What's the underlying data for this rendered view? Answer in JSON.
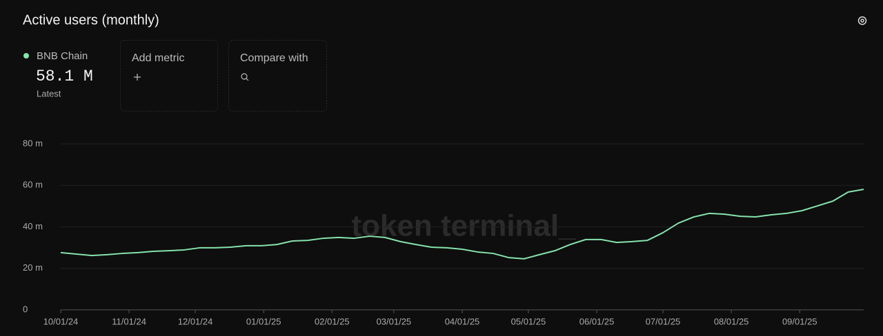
{
  "chart_data": {
    "type": "line",
    "title": "Active users (monthly)",
    "legend": {
      "value": "58.1 M",
      "caption": "Latest"
    },
    "watermark": "token terminal_",
    "x": [
      "2024-10-01",
      "2024-10-08",
      "2024-10-15",
      "2024-10-22",
      "2024-10-29",
      "2024-11-05",
      "2024-11-12",
      "2024-11-19",
      "2024-11-26",
      "2024-12-03",
      "2024-12-10",
      "2024-12-17",
      "2024-12-24",
      "2024-12-31",
      "2025-01-07",
      "2025-01-14",
      "2025-01-21",
      "2025-01-28",
      "2025-02-04",
      "2025-02-11",
      "2025-02-18",
      "2025-02-25",
      "2025-03-04",
      "2025-03-11",
      "2025-03-18",
      "2025-03-25",
      "2025-04-01",
      "2025-04-08",
      "2025-04-15",
      "2025-04-22",
      "2025-04-29",
      "2025-05-06",
      "2025-05-13",
      "2025-05-20",
      "2025-05-27",
      "2025-06-03",
      "2025-06-10",
      "2025-06-17",
      "2025-06-24",
      "2025-07-01",
      "2025-07-08",
      "2025-07-15",
      "2025-07-22",
      "2025-07-29",
      "2025-08-05",
      "2025-08-12",
      "2025-08-19",
      "2025-08-26",
      "2025-09-02",
      "2025-09-09",
      "2025-09-16",
      "2025-09-23",
      "2025-09-30"
    ],
    "series": [
      {
        "name": "BNB Chain",
        "color": "#86e3ad",
        "values": [
          27.6,
          26.9,
          26.2,
          26.6,
          27.2,
          27.6,
          28.2,
          28.5,
          28.9,
          29.9,
          29.9,
          30.2,
          30.9,
          30.9,
          31.5,
          33.2,
          33.5,
          34.5,
          34.9,
          34.5,
          35.5,
          34.9,
          32.9,
          31.5,
          30.2,
          29.9,
          29.2,
          27.9,
          27.2,
          25.2,
          24.6,
          26.6,
          28.5,
          31.5,
          33.9,
          33.9,
          32.5,
          32.9,
          33.5,
          37.2,
          41.8,
          44.8,
          46.5,
          46.1,
          45.1,
          44.8,
          45.8,
          46.5,
          47.8,
          50.1,
          52.4,
          56.8,
          58.1
        ]
      }
    ],
    "xlim": [
      "2024-10-01",
      "2025-09-30"
    ],
    "xticks": [
      {
        "value": "2024-10-01",
        "label": "10/01/24"
      },
      {
        "value": "2024-11-01",
        "label": "11/01/24"
      },
      {
        "value": "2024-12-01",
        "label": "12/01/24"
      },
      {
        "value": "2025-01-01",
        "label": "01/01/25"
      },
      {
        "value": "2025-02-01",
        "label": "02/01/25"
      },
      {
        "value": "2025-03-01",
        "label": "03/01/25"
      },
      {
        "value": "2025-04-01",
        "label": "04/01/25"
      },
      {
        "value": "2025-05-01",
        "label": "05/01/25"
      },
      {
        "value": "2025-06-01",
        "label": "06/01/25"
      },
      {
        "value": "2025-07-01",
        "label": "07/01/25"
      },
      {
        "value": "2025-08-01",
        "label": "08/01/25"
      },
      {
        "value": "2025-09-01",
        "label": "09/01/25"
      }
    ],
    "ylim": [
      0,
      80
    ],
    "yticks": [
      0,
      {
        "value": 20,
        "label": "20 m"
      },
      {
        "value": 40,
        "label": "40 m"
      },
      {
        "value": 60,
        "label": "60 m"
      },
      {
        "value": 80,
        "label": "80 m"
      }
    ],
    "grid": true
  },
  "controls": [
    "Add metric",
    "Compare with"
  ]
}
